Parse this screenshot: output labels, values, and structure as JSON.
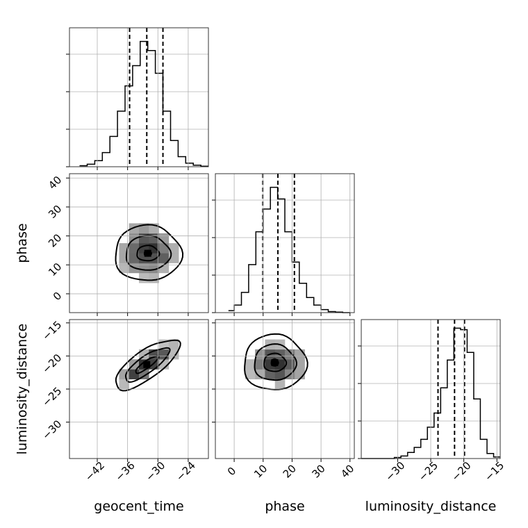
{
  "chart_data": {
    "type": "corner",
    "parameters": [
      "geocent_time",
      "phase",
      "luminosity_distance"
    ],
    "axis_labels": {
      "geocent_time": "geocent_time",
      "phase": "phase",
      "luminosity_distance": "luminosity_distance"
    },
    "ranges": {
      "geocent_time": [
        -47.5,
        -20.0
      ],
      "phase": [
        -6.5,
        41.5
      ],
      "luminosity_distance": [
        -35.5,
        -14.5
      ]
    },
    "ticks": {
      "geocent_time": [
        -42,
        -36,
        -30,
        -24
      ],
      "phase": [
        0,
        10,
        20,
        30,
        40
      ],
      "luminosity_distance": [
        -30,
        -25,
        -20,
        -15
      ]
    },
    "tick_labels": {
      "geocent_time": [
        "−42",
        "−36",
        "−30",
        "−24"
      ],
      "phase": [
        "0",
        "10",
        "20",
        "30",
        "40"
      ],
      "luminosity_distance": [
        "−30",
        "−25",
        "−20",
        "−15"
      ]
    },
    "quantiles": {
      "geocent_time": [
        -35.6,
        -32.2,
        -29.0
      ],
      "phase": [
        9.9,
        15.1,
        20.8
      ],
      "luminosity_distance": [
        -23.9,
        -21.4,
        -19.9
      ]
    },
    "histograms": {
      "geocent_time": {
        "edges": [
          -45.5,
          -44.0,
          -42.5,
          -41.0,
          -39.5,
          -38.0,
          -36.5,
          -35.0,
          -33.5,
          -32.0,
          -30.5,
          -29.0,
          -27.5,
          -26.0,
          -24.5,
          -23.0,
          -21.5,
          -20.0
        ],
        "counts": [
          2,
          5,
          12,
          28,
          60,
          110,
          160,
          200,
          248,
          230,
          185,
          110,
          52,
          20,
          7,
          3,
          1
        ]
      },
      "phase": {
        "edges": [
          -2,
          0,
          2.5,
          5,
          7.5,
          10,
          12.5,
          15,
          17.5,
          20,
          22.5,
          25,
          27.5,
          30,
          32.5,
          35,
          37.5,
          40
        ],
        "counts": [
          4,
          15,
          40,
          95,
          160,
          205,
          248,
          225,
          160,
          100,
          58,
          30,
          15,
          6,
          2,
          1,
          0
        ]
      },
      "luminosity_distance": {
        "edges": [
          -35.5,
          -34.5,
          -33.5,
          -32.5,
          -31.5,
          -30.5,
          -29.5,
          -28.5,
          -27.5,
          -26.5,
          -25.5,
          -24.5,
          -23.5,
          -22.5,
          -21.5,
          -20.5,
          -19.5,
          -18.5,
          -17.5,
          -16.5,
          -15.5,
          -14.5
        ],
        "counts": [
          0,
          0,
          0,
          0,
          0,
          2,
          5,
          12,
          22,
          38,
          62,
          90,
          140,
          195,
          258,
          255,
          210,
          118,
          38,
          10,
          3
        ]
      }
    },
    "scatter_samples": {
      "count": 2400
    },
    "hist_max_y": 275,
    "grid": true,
    "legend": "none"
  }
}
